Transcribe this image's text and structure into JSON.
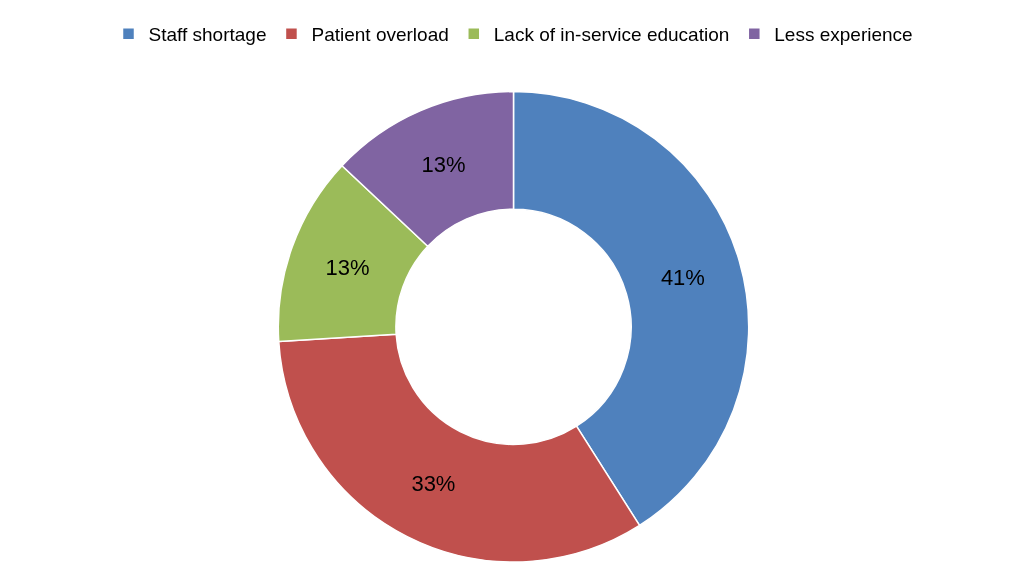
{
  "chart_data": {
    "type": "donut",
    "categories": [
      "Staff shortage",
      "Patient overload",
      "Lack of in-service education",
      "Less experience"
    ],
    "values": [
      41,
      33,
      13,
      13
    ],
    "value_labels": [
      "41%",
      "33%",
      "13%",
      "13%"
    ],
    "colors": [
      "#4f81bd",
      "#c0504d",
      "#9bbb59",
      "#8064a2"
    ],
    "legend": "top"
  }
}
